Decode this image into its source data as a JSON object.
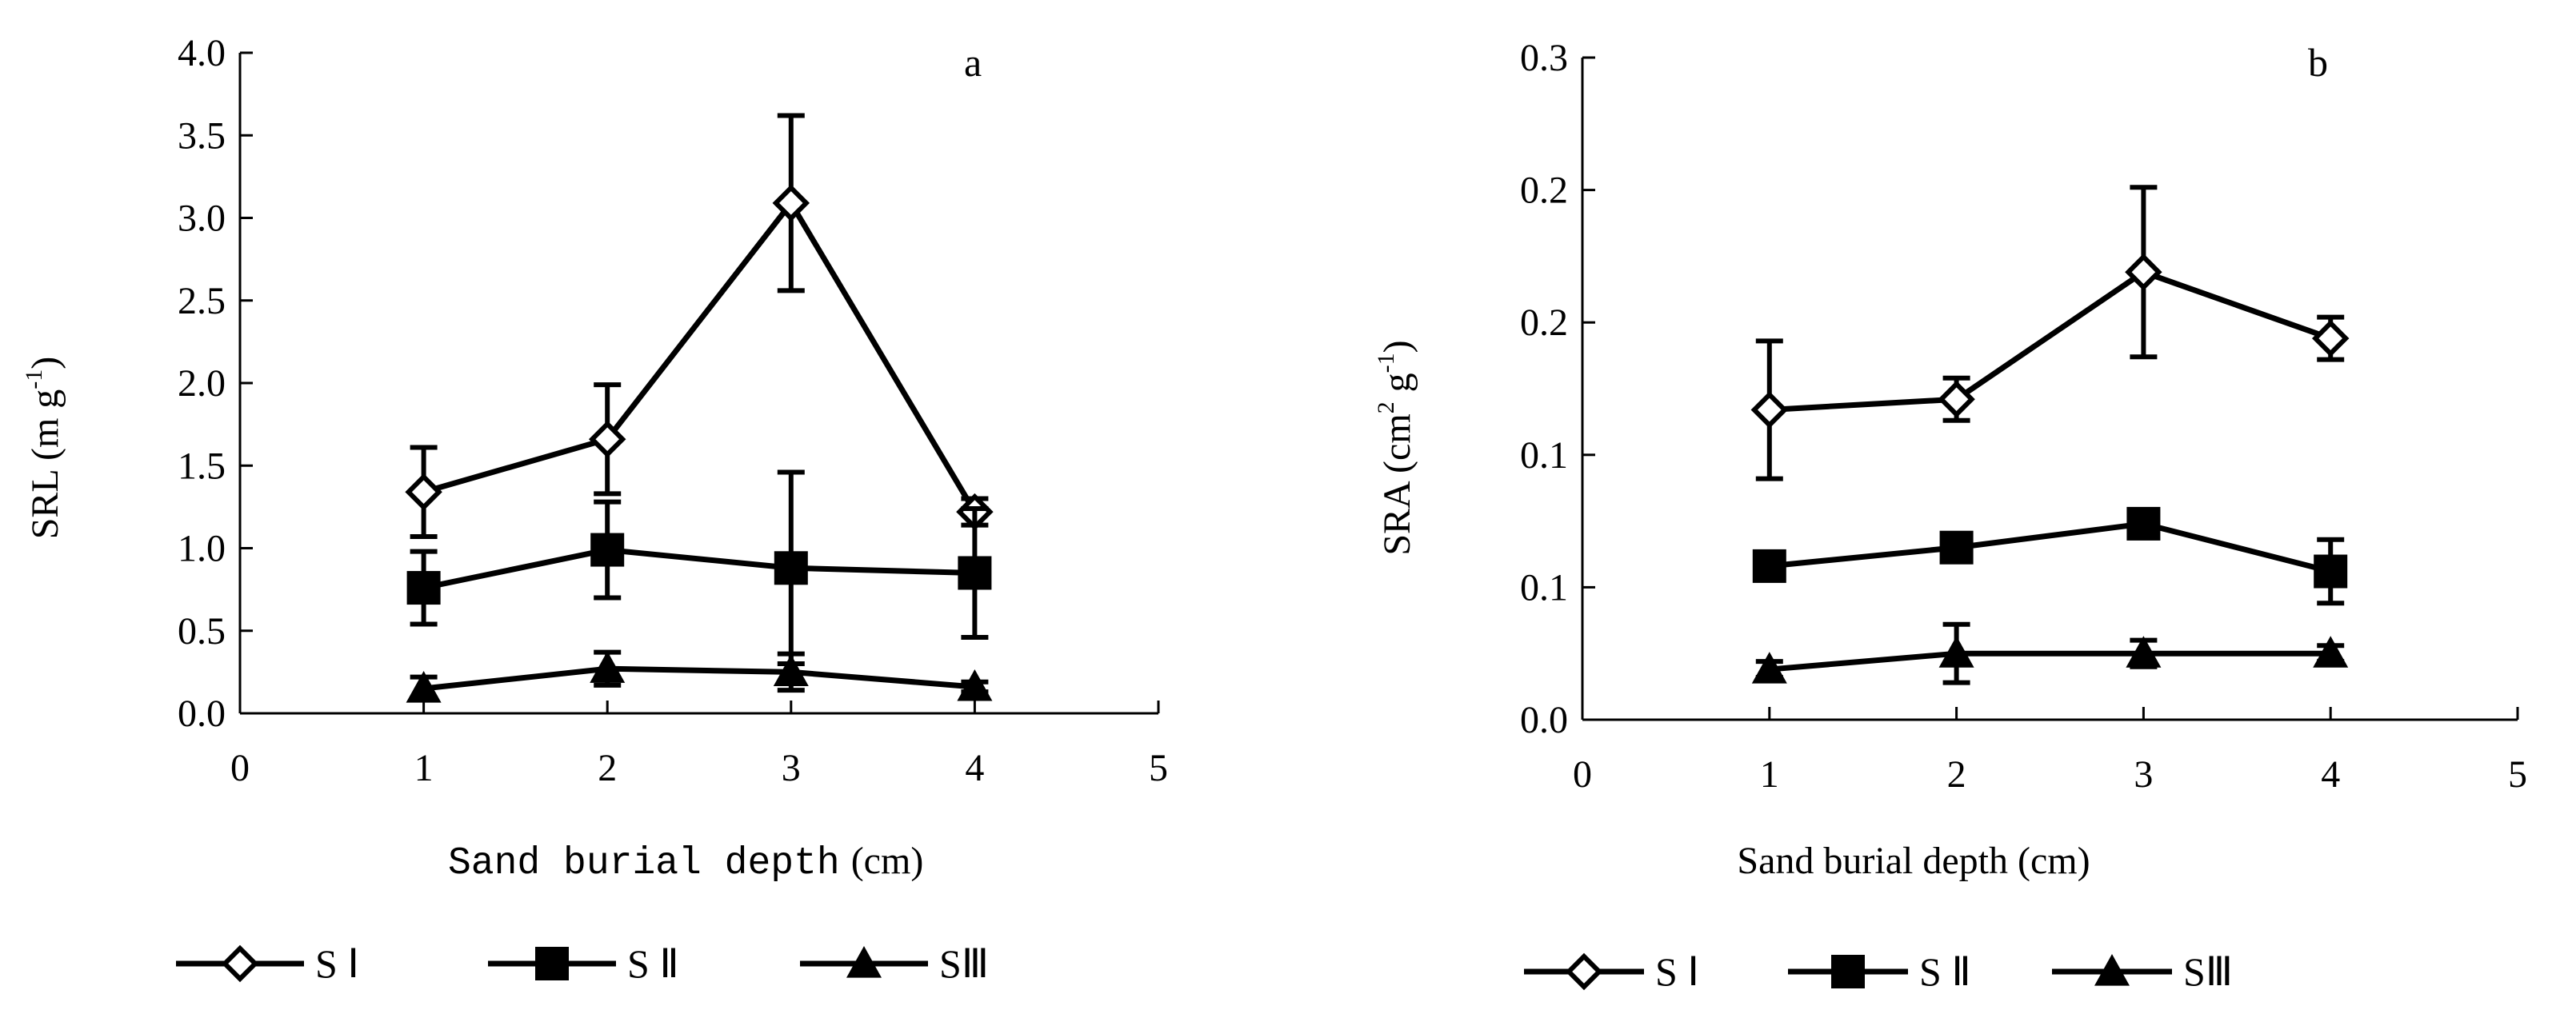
{
  "chart_data": [
    {
      "type": "line",
      "panel_label": "a",
      "xlabel": "Sand burial depth",
      "xlabel_unit": "(cm)",
      "ylabel": "SRL  (m g",
      "ylabel_sup": "-1",
      "ylabel_end": ")",
      "xlim": [
        0,
        5
      ],
      "ylim": [
        0,
        4
      ],
      "x_ticks": [
        "0",
        "1",
        "2",
        "3",
        "4",
        "5"
      ],
      "y_ticks": [
        "0.0",
        "0.5",
        "1.0",
        "1.5",
        "2.0",
        "2.5",
        "3.0",
        "3.5",
        "4.0"
      ],
      "x": [
        1,
        2,
        3,
        4
      ],
      "series": [
        {
          "name": "S Ⅰ",
          "marker": "diamond",
          "values": [
            1.34,
            1.66,
            3.09,
            1.22
          ],
          "errors": [
            0.27,
            0.33,
            0.53,
            0.08
          ]
        },
        {
          "name": "S Ⅱ",
          "marker": "square",
          "values": [
            0.76,
            0.99,
            0.88,
            0.85
          ],
          "errors": [
            0.22,
            0.29,
            0.58,
            0.39
          ]
        },
        {
          "name": "SⅢ",
          "marker": "triangle",
          "values": [
            0.15,
            0.27,
            0.25,
            0.16
          ],
          "errors": [
            0.07,
            0.1,
            0.11,
            0.03
          ]
        }
      ]
    },
    {
      "type": "line",
      "panel_label": "b",
      "xlabel": "Sand burial depth (cm)",
      "ylabel": "SRA  (cm",
      "ylabel_sup1": "2",
      "ylabel_mid": " g",
      "ylabel_sup2": "-1",
      "ylabel_end": ")",
      "xlim": [
        0,
        5
      ],
      "ylim": [
        0,
        0.25
      ],
      "x_ticks": [
        "0",
        "1",
        "2",
        "3",
        "4",
        "5"
      ],
      "y_ticks": [
        "0.0",
        "0.1",
        "0.1",
        "0.2",
        "0.2",
        "0.3"
      ],
      "x": [
        1,
        2,
        3,
        4
      ],
      "series": [
        {
          "name": "S Ⅰ",
          "marker": "diamond",
          "values": [
            0.117,
            0.121,
            0.169,
            0.144
          ],
          "errors": [
            0.026,
            0.008,
            0.032,
            0.008
          ]
        },
        {
          "name": "S Ⅱ",
          "marker": "square",
          "values": [
            0.058,
            0.065,
            0.074,
            0.056
          ],
          "errors": [
            0.005,
            0.004,
            0.004,
            0.012
          ]
        },
        {
          "name": "SⅢ",
          "marker": "triangle",
          "values": [
            0.019,
            0.025,
            0.025,
            0.025
          ],
          "errors": [
            0.003,
            0.011,
            0.005,
            0.003
          ]
        }
      ]
    }
  ]
}
